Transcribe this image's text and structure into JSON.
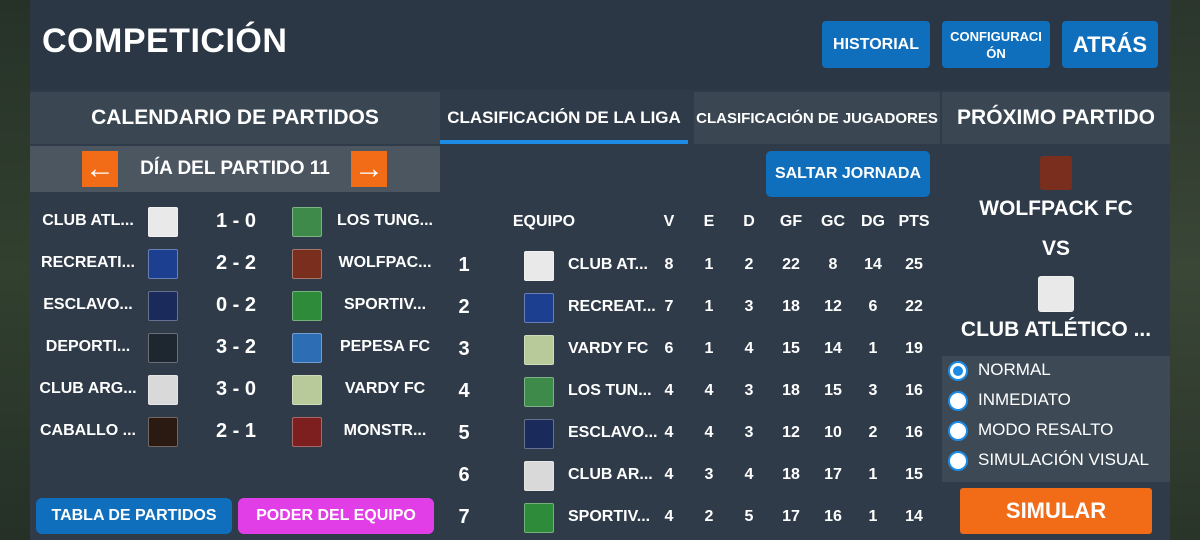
{
  "header": {
    "title": "COMPETICIÓN",
    "historial": "HISTORIAL",
    "configuracion": "CONFIGURACIÓN",
    "atras": "ATRÁS"
  },
  "calendar": {
    "title": "CALENDARIO DE PARTIDOS",
    "prev_icon": "←",
    "next_icon": "→",
    "day_label": "DÍA DEL PARTIDO 11",
    "fixtures": [
      {
        "home": "CLUB ATL...",
        "score": "1 - 0",
        "away": "LOS TUNG...",
        "home_color": "#e9e9e9",
        "away_color": "#3d8a4a"
      },
      {
        "home": "RECREATI...",
        "score": "2 - 2",
        "away": "WOLFPAC...",
        "home_color": "#1c3f8f",
        "away_color": "#7a2f1e"
      },
      {
        "home": "ESCLAVO...",
        "score": "0 - 2",
        "away": "SPORTIV...",
        "home_color": "#1a2a5a",
        "away_color": "#2e8b3a"
      },
      {
        "home": "DEPORTI...",
        "score": "3 - 2",
        "away": "PEPESA FC",
        "home_color": "#1e2630",
        "away_color": "#2c6db3"
      },
      {
        "home": "CLUB ARG...",
        "score": "3 - 0",
        "away": "VARDY FC",
        "home_color": "#d9d9d9",
        "away_color": "#b8c99a"
      },
      {
        "home": "CABALLO ...",
        "score": "2 - 1",
        "away": "MONSTR...",
        "home_color": "#2a1a12",
        "away_color": "#7d1f1f"
      }
    ],
    "btn_tabla": "TABLA DE PARTIDOS",
    "btn_poder": "PODER DEL EQUIPO"
  },
  "tabs": {
    "liga": "CLASIFICACIÓN DE LA LIGA",
    "jugadores": "CLASIFICACIÓN DE JUGADORES"
  },
  "standings": {
    "saltar": "SALTAR JORNADA",
    "headers": {
      "equipo": "EQUIPO",
      "v": "V",
      "e": "E",
      "d": "D",
      "gf": "GF",
      "gc": "GC",
      "dg": "DG",
      "pts": "PTS"
    },
    "rows": [
      {
        "pos": "1",
        "team": "CLUB AT...",
        "v": "8",
        "e": "1",
        "d": "2",
        "gf": "22",
        "gc": "8",
        "dg": "14",
        "pts": "25",
        "color": "#e9e9e9"
      },
      {
        "pos": "2",
        "team": "RECREAT...",
        "v": "7",
        "e": "1",
        "d": "3",
        "gf": "18",
        "gc": "12",
        "dg": "6",
        "pts": "22",
        "color": "#1c3f8f"
      },
      {
        "pos": "3",
        "team": "VARDY FC",
        "v": "6",
        "e": "1",
        "d": "4",
        "gf": "15",
        "gc": "14",
        "dg": "1",
        "pts": "19",
        "color": "#b8c99a"
      },
      {
        "pos": "4",
        "team": "LOS TUN...",
        "v": "4",
        "e": "4",
        "d": "3",
        "gf": "18",
        "gc": "15",
        "dg": "3",
        "pts": "16",
        "color": "#3d8a4a"
      },
      {
        "pos": "5",
        "team": "ESCLAVO...",
        "v": "4",
        "e": "4",
        "d": "3",
        "gf": "12",
        "gc": "10",
        "dg": "2",
        "pts": "16",
        "color": "#1a2a5a"
      },
      {
        "pos": "6",
        "team": "CLUB AR...",
        "v": "4",
        "e": "3",
        "d": "4",
        "gf": "18",
        "gc": "17",
        "dg": "1",
        "pts": "15",
        "color": "#d9d9d9"
      },
      {
        "pos": "7",
        "team": "SPORTIV...",
        "v": "4",
        "e": "2",
        "d": "5",
        "gf": "17",
        "gc": "16",
        "dg": "1",
        "pts": "14",
        "color": "#2e8b3a"
      }
    ]
  },
  "next_match": {
    "title": "PRÓXIMO PARTIDO",
    "team1": "WOLFPACK FC",
    "vs": "VS",
    "team2": "CLUB ATLÉTICO ...",
    "team1_color": "#7a2f1e",
    "team2_color": "#e9e9e9",
    "modes": [
      {
        "label": "NORMAL",
        "selected": true
      },
      {
        "label": "INMEDIATO",
        "selected": false
      },
      {
        "label": "MODO RESALTO",
        "selected": false
      },
      {
        "label": "SIMULACIÓN VISUAL",
        "selected": false
      }
    ],
    "simular": "SIMULAR"
  }
}
